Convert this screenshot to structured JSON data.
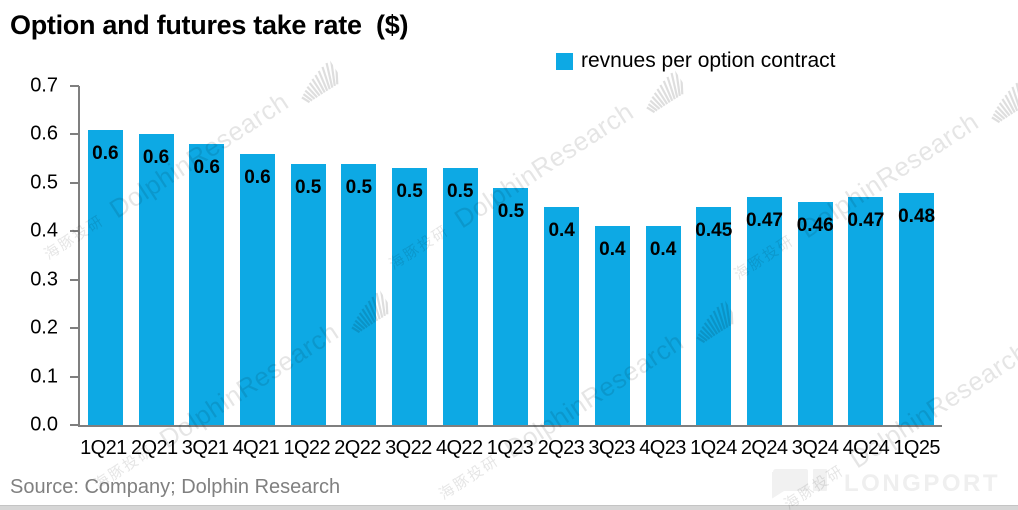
{
  "header": {
    "title": "Option and futures take rate  ($)"
  },
  "legend": {
    "label": "revnues per option contract",
    "swatch_color": "#0da9e4"
  },
  "chart_data": {
    "type": "bar",
    "title": "Option and futures take rate  ($)",
    "legend_entries": [
      "revnues per option contract"
    ],
    "legend_position": "top",
    "grid": false,
    "categories": [
      "1Q21",
      "2Q21",
      "3Q21",
      "4Q21",
      "1Q22",
      "2Q22",
      "3Q22",
      "4Q22",
      "1Q23",
      "2Q23",
      "3Q23",
      "4Q23",
      "1Q24",
      "2Q24",
      "3Q24",
      "4Q24",
      "1Q25"
    ],
    "values": [
      0.61,
      0.6,
      0.58,
      0.56,
      0.54,
      0.54,
      0.53,
      0.53,
      0.49,
      0.45,
      0.41,
      0.41,
      0.45,
      0.47,
      0.46,
      0.47,
      0.48
    ],
    "bar_labels": [
      "0.6",
      "0.6",
      "0.6",
      "0.6",
      "0.5",
      "0.5",
      "0.5",
      "0.5",
      "0.5",
      "0.4",
      "0.4",
      "0.4",
      "0.45",
      "0.47",
      "0.46",
      "0.47",
      "0.48"
    ],
    "xlabel": "",
    "ylabel": "",
    "ylim": [
      0,
      0.7
    ],
    "ytick_labels": [
      "0.7",
      "0.6",
      "0.5",
      "0.4",
      "0.3",
      "0.2",
      "0.1",
      "0.0"
    ],
    "bar_color": "#0da9e4"
  },
  "watermark": {
    "cn": "海豚投研",
    "en": "DolphinResearch"
  },
  "footer": {
    "source": "Source: Company; Dolphin Research",
    "logo_text": "LONGPORT"
  }
}
